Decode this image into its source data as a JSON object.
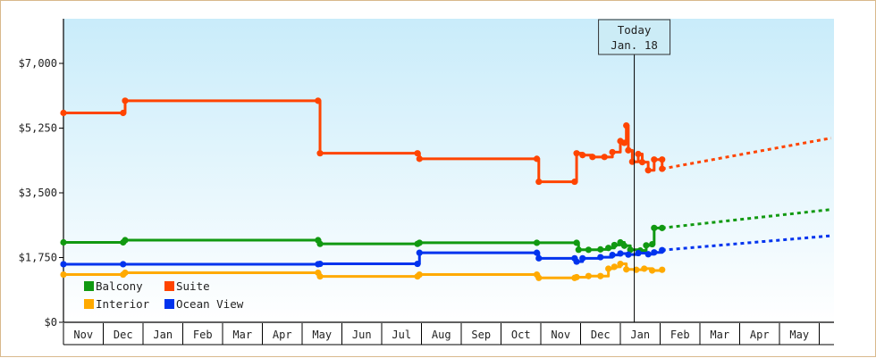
{
  "chart_data": {
    "type": "line",
    "title": "",
    "xlabel": "",
    "ylabel": "",
    "ylim": [
      0,
      7000
    ],
    "yticks": [
      {
        "value": 0,
        "label": "$0"
      },
      {
        "value": 1750,
        "label": "$1,750"
      },
      {
        "value": 3500,
        "label": "$3,500"
      },
      {
        "value": 5250,
        "label": "$5,250"
      },
      {
        "value": 7000,
        "label": "$7,000"
      }
    ],
    "months": [
      "Nov",
      "Dec",
      "Jan",
      "Feb",
      "Mar",
      "Apr",
      "May",
      "Jun",
      "Jul",
      "Aug",
      "Sep",
      "Oct",
      "Nov",
      "Dec",
      "Jan",
      "Feb",
      "Mar",
      "Apr",
      "May"
    ],
    "today": {
      "line1": "Today",
      "line2": "Jan. 18",
      "x": 14.35
    },
    "legend_placement": "bottom-left",
    "grid": false,
    "series": [
      {
        "name": "Balcony",
        "color": "#119911",
        "points": [
          [
            0,
            2160
          ],
          [
            1.5,
            2160
          ],
          [
            1.55,
            2220
          ],
          [
            6.4,
            2220
          ],
          [
            6.45,
            2120
          ],
          [
            8.9,
            2120
          ],
          [
            8.95,
            2150
          ],
          [
            11.9,
            2150
          ],
          [
            12.9,
            2150
          ],
          [
            12.95,
            1960
          ],
          [
            13.2,
            1960
          ],
          [
            13.5,
            1970
          ],
          [
            13.7,
            2010
          ],
          [
            13.85,
            2090
          ],
          [
            14,
            2160
          ],
          [
            14.1,
            2070
          ],
          [
            14.25,
            1960
          ],
          [
            14.5,
            1940
          ],
          [
            14.65,
            2080
          ],
          [
            14.8,
            2110
          ],
          [
            14.85,
            2550
          ],
          [
            15.05,
            2550
          ]
        ],
        "forecast": [
          [
            15.05,
            2550
          ],
          [
            19.3,
            3050
          ]
        ]
      },
      {
        "name": "Suite",
        "color": "#ff4400",
        "points": [
          [
            0,
            5660
          ],
          [
            1.5,
            5660
          ],
          [
            1.55,
            5990
          ],
          [
            6.4,
            5990
          ],
          [
            6.45,
            4570
          ],
          [
            8.9,
            4570
          ],
          [
            8.95,
            4420
          ],
          [
            11.9,
            4420
          ],
          [
            11.95,
            3800
          ],
          [
            12.85,
            3800
          ],
          [
            12.9,
            4570
          ],
          [
            13.05,
            4520
          ],
          [
            13.3,
            4470
          ],
          [
            13.6,
            4470
          ],
          [
            13.8,
            4600
          ],
          [
            14,
            4900
          ],
          [
            14.1,
            4850
          ],
          [
            14.15,
            5320
          ],
          [
            14.2,
            4650
          ],
          [
            14.3,
            4340
          ],
          [
            14.45,
            4550
          ],
          [
            14.55,
            4330
          ],
          [
            14.7,
            4110
          ],
          [
            14.85,
            4400
          ],
          [
            15.05,
            4400
          ],
          [
            15.05,
            4150
          ]
        ],
        "forecast": [
          [
            15.05,
            4150
          ],
          [
            19.3,
            4980
          ]
        ]
      },
      {
        "name": "Interior",
        "color": "#ffaa00",
        "points": [
          [
            0,
            1290
          ],
          [
            1.5,
            1290
          ],
          [
            1.55,
            1340
          ],
          [
            6.4,
            1340
          ],
          [
            6.45,
            1240
          ],
          [
            8.9,
            1240
          ],
          [
            8.95,
            1290
          ],
          [
            11.9,
            1290
          ],
          [
            11.95,
            1200
          ],
          [
            12.85,
            1200
          ],
          [
            12.9,
            1220
          ],
          [
            13.2,
            1250
          ],
          [
            13.5,
            1250
          ],
          [
            13.7,
            1450
          ],
          [
            13.85,
            1500
          ],
          [
            14,
            1580
          ],
          [
            14.15,
            1430
          ],
          [
            14.4,
            1420
          ],
          [
            14.6,
            1450
          ],
          [
            14.8,
            1400
          ],
          [
            15.05,
            1420
          ]
        ],
        "forecast": []
      },
      {
        "name": "Ocean View",
        "color": "#0033ee",
        "points": [
          [
            0,
            1570
          ],
          [
            1.5,
            1570
          ],
          [
            6.4,
            1570
          ],
          [
            6.45,
            1580
          ],
          [
            8.9,
            1580
          ],
          [
            8.95,
            1880
          ],
          [
            11.9,
            1880
          ],
          [
            11.95,
            1730
          ],
          [
            12.85,
            1730
          ],
          [
            12.9,
            1640
          ],
          [
            13.05,
            1730
          ],
          [
            13.5,
            1760
          ],
          [
            13.8,
            1820
          ],
          [
            14,
            1860
          ],
          [
            14.2,
            1830
          ],
          [
            14.45,
            1870
          ],
          [
            14.7,
            1840
          ],
          [
            14.85,
            1890
          ],
          [
            15.05,
            1950
          ]
        ],
        "forecast": [
          [
            15.05,
            1950
          ],
          [
            19.3,
            2340
          ]
        ]
      }
    ]
  }
}
